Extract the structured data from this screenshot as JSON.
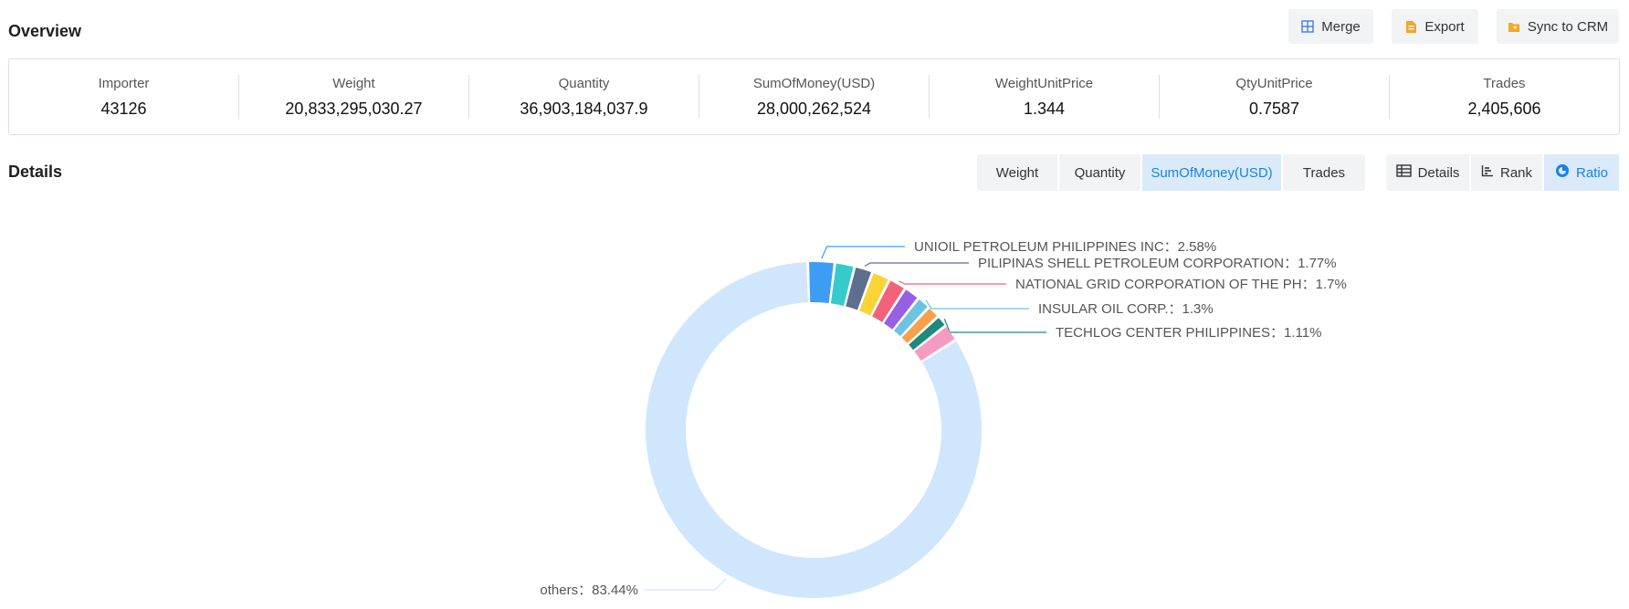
{
  "overview": {
    "title": "Overview",
    "actions": [
      {
        "label": "Merge",
        "icon": "merge-grid-icon"
      },
      {
        "label": "Export",
        "icon": "export-file-icon"
      },
      {
        "label": "Sync to CRM",
        "icon": "crm-folder-icon"
      }
    ],
    "stats": [
      {
        "label": "Importer",
        "value": "43126"
      },
      {
        "label": "Weight",
        "value": "20,833,295,030.27"
      },
      {
        "label": "Quantity",
        "value": "36,903,184,037.9"
      },
      {
        "label": "SumOfMoney(USD)",
        "value": "28,000,262,524"
      },
      {
        "label": "WeightUnitPrice",
        "value": "1.344"
      },
      {
        "label": "QtyUnitPrice",
        "value": "0.7587"
      },
      {
        "label": "Trades",
        "value": "2,405,606"
      }
    ]
  },
  "details": {
    "title": "Details",
    "metric_tabs": [
      "Weight",
      "Quantity",
      "SumOfMoney(USD)",
      "Trades"
    ],
    "active_metric": "SumOfMoney(USD)",
    "view_tabs": [
      {
        "label": "Details",
        "icon": "table-icon"
      },
      {
        "label": "Rank",
        "icon": "rank-bars-icon"
      },
      {
        "label": "Ratio",
        "icon": "donut-ratio-icon"
      }
    ],
    "active_view": "Ratio"
  },
  "chart_data": {
    "type": "pie",
    "variant": "donut",
    "start_angle_deg": -2,
    "slices": [
      {
        "name": "UNIOIL PETROLEUM PHILIPPINES INC",
        "value": 2.58,
        "color": "#3d9df5",
        "labeled": true
      },
      {
        "name": "",
        "value": 1.9,
        "color": "#36cbcb",
        "labeled": false
      },
      {
        "name": "PILIPINAS SHELL PETROLEUM CORPORATION",
        "value": 1.77,
        "color": "#5e6e8e",
        "labeled": true
      },
      {
        "name": "",
        "value": 1.75,
        "color": "#fad337",
        "labeled": false
      },
      {
        "name": "NATIONAL GRID CORPORATION OF THE PH",
        "value": 1.7,
        "color": "#f2637b",
        "labeled": true
      },
      {
        "name": "",
        "value": 1.55,
        "color": "#975fe4",
        "labeled": false
      },
      {
        "name": "INSULAR OIL CORP.",
        "value": 1.3,
        "color": "#6cc4e0",
        "labeled": true
      },
      {
        "name": "",
        "value": 1.24,
        "color": "#f8a14a",
        "labeled": false
      },
      {
        "name": "TECHLOG CENTER PHILIPPINES",
        "value": 1.11,
        "color": "#1f8a7c",
        "labeled": true
      },
      {
        "name": "",
        "value": 1.66,
        "color": "#f59bc1",
        "labeled": false
      },
      {
        "name": "others",
        "value": 83.44,
        "color": "#d0e6fc",
        "labeled": true
      }
    ],
    "label_format": "name：value%"
  }
}
